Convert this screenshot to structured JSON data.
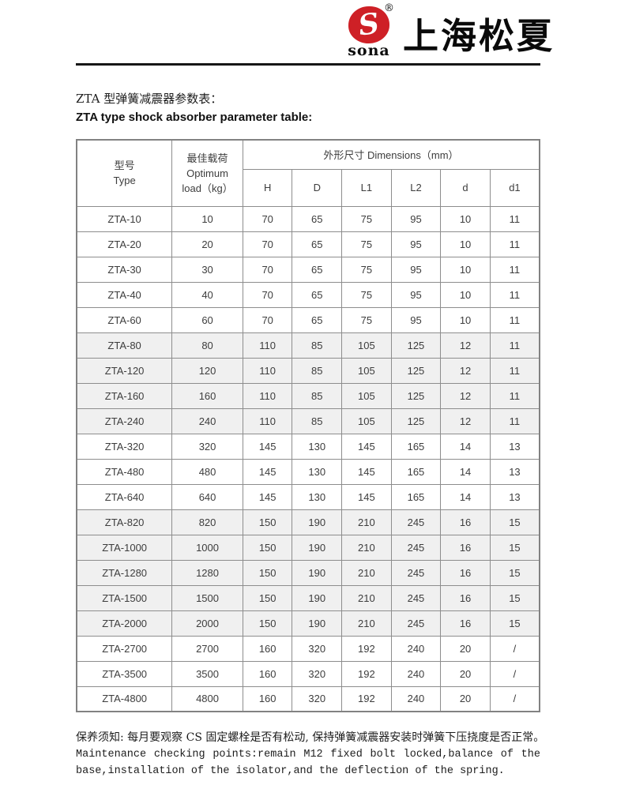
{
  "logo": {
    "brand_symbol": "S",
    "registered_mark": "®",
    "brand_name": "sona",
    "company_name": "上海松夏",
    "brand_red": "#ce2026"
  },
  "titles": {
    "zh": "ZTA 型弹簧减震器参数表：",
    "en": "ZTA type shock absorber parameter table:"
  },
  "table": {
    "header": {
      "type_zh": "型号",
      "type_en": "Type",
      "load_zh": "最佳载荷",
      "load_en_line1": "Optimum",
      "load_en_line2": "load（kg）",
      "dims_label": "外形尺寸 Dimensions（mm）",
      "dim_cols": [
        "H",
        "D",
        "L1",
        "L2",
        "d",
        "d1"
      ]
    },
    "rows": [
      {
        "shaded": false,
        "cells": [
          "ZTA-10",
          "10",
          "70",
          "65",
          "75",
          "95",
          "10",
          "11"
        ]
      },
      {
        "shaded": false,
        "cells": [
          "ZTA-20",
          "20",
          "70",
          "65",
          "75",
          "95",
          "10",
          "11"
        ]
      },
      {
        "shaded": false,
        "cells": [
          "ZTA-30",
          "30",
          "70",
          "65",
          "75",
          "95",
          "10",
          "11"
        ]
      },
      {
        "shaded": false,
        "cells": [
          "ZTA-40",
          "40",
          "70",
          "65",
          "75",
          "95",
          "10",
          "11"
        ]
      },
      {
        "shaded": false,
        "cells": [
          "ZTA-60",
          "60",
          "70",
          "65",
          "75",
          "95",
          "10",
          "11"
        ]
      },
      {
        "shaded": true,
        "cells": [
          "ZTA-80",
          "80",
          "110",
          "85",
          "105",
          "125",
          "12",
          "11"
        ]
      },
      {
        "shaded": true,
        "cells": [
          "ZTA-120",
          "120",
          "110",
          "85",
          "105",
          "125",
          "12",
          "11"
        ]
      },
      {
        "shaded": true,
        "cells": [
          "ZTA-160",
          "160",
          "110",
          "85",
          "105",
          "125",
          "12",
          "11"
        ]
      },
      {
        "shaded": true,
        "cells": [
          "ZTA-240",
          "240",
          "110",
          "85",
          "105",
          "125",
          "12",
          "11"
        ]
      },
      {
        "shaded": false,
        "cells": [
          "ZTA-320",
          "320",
          "145",
          "130",
          "145",
          "165",
          "14",
          "13"
        ]
      },
      {
        "shaded": false,
        "cells": [
          "ZTA-480",
          "480",
          "145",
          "130",
          "145",
          "165",
          "14",
          "13"
        ]
      },
      {
        "shaded": false,
        "cells": [
          "ZTA-640",
          "640",
          "145",
          "130",
          "145",
          "165",
          "14",
          "13"
        ]
      },
      {
        "shaded": true,
        "cells": [
          "ZTA-820",
          "820",
          "150",
          "190",
          "210",
          "245",
          "16",
          "15"
        ]
      },
      {
        "shaded": true,
        "cells": [
          "ZTA-1000",
          "1000",
          "150",
          "190",
          "210",
          "245",
          "16",
          "15"
        ]
      },
      {
        "shaded": true,
        "cells": [
          "ZTA-1280",
          "1280",
          "150",
          "190",
          "210",
          "245",
          "16",
          "15"
        ]
      },
      {
        "shaded": true,
        "cells": [
          "ZTA-1500",
          "1500",
          "150",
          "190",
          "210",
          "245",
          "16",
          "15"
        ]
      },
      {
        "shaded": true,
        "cells": [
          "ZTA-2000",
          "2000",
          "150",
          "190",
          "210",
          "245",
          "16",
          "15"
        ]
      },
      {
        "shaded": false,
        "cells": [
          "ZTA-2700",
          "2700",
          "160",
          "320",
          "192",
          "240",
          "20",
          "/"
        ]
      },
      {
        "shaded": false,
        "cells": [
          "ZTA-3500",
          "3500",
          "160",
          "320",
          "192",
          "240",
          "20",
          "/"
        ]
      },
      {
        "shaded": false,
        "cells": [
          "ZTA-4800",
          "4800",
          "160",
          "320",
          "192",
          "240",
          "20",
          "/"
        ]
      }
    ]
  },
  "footer": {
    "line1_zh": "保养须知: 每月要观察 CS 固定螺栓是否有松动, 保持弹簧减震器安装时弹簧下压挠度是否正常。",
    "line2_en": "Maintenance checking points:remain M12 fixed bolt locked,balance of the",
    "line3_en": "base,installation of the isolator,and the deflection of the spring."
  }
}
